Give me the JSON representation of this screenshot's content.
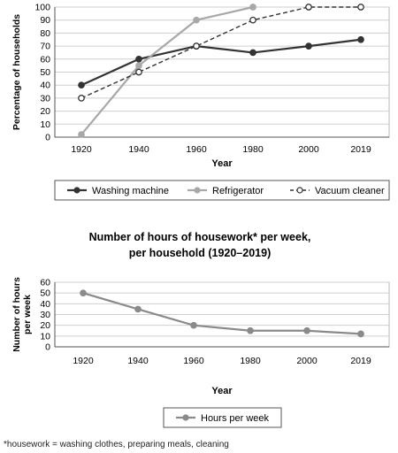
{
  "chart_data": [
    {
      "type": "line",
      "title": "",
      "xlabel": "Year",
      "ylabel": "Percentage of households",
      "categories": [
        "1920",
        "1940",
        "1960",
        "1980",
        "2000",
        "2019"
      ],
      "ylim": [
        0,
        100
      ],
      "yticks": [
        0,
        10,
        20,
        30,
        40,
        50,
        60,
        70,
        80,
        90,
        100
      ],
      "grid": true,
      "legend_position": "bottom",
      "series": [
        {
          "name": "Washing machine",
          "values": [
            40,
            60,
            70,
            65,
            70,
            75
          ],
          "color": "#333333",
          "style": "solid",
          "marker": "filled"
        },
        {
          "name": "Refrigerator",
          "values": [
            2,
            55,
            90,
            100,
            null,
            null
          ],
          "color": "#a8a8a8",
          "style": "solid",
          "marker": "filled"
        },
        {
          "name": "Vacuum cleaner",
          "values": [
            30,
            50,
            70,
            90,
            100,
            100
          ],
          "color": "#333333",
          "style": "dashed",
          "marker": "open"
        }
      ]
    },
    {
      "type": "line",
      "title": "Number of hours of housework* per week,",
      "subtitle": "per household (1920–2019)",
      "xlabel": "Year",
      "ylabel": "Number of hours per week",
      "categories": [
        "1920",
        "1940",
        "1960",
        "1980",
        "2000",
        "2019"
      ],
      "ylim": [
        0,
        60
      ],
      "yticks": [
        0,
        10,
        20,
        30,
        40,
        50,
        60
      ],
      "grid": true,
      "legend_position": "bottom",
      "series": [
        {
          "name": "Hours per week",
          "values": [
            50,
            35,
            20,
            15,
            15,
            12
          ],
          "color": "#8a8a8a",
          "style": "solid",
          "marker": "filled"
        }
      ]
    }
  ],
  "footnote": "*housework = washing clothes, preparing meals, cleaning"
}
